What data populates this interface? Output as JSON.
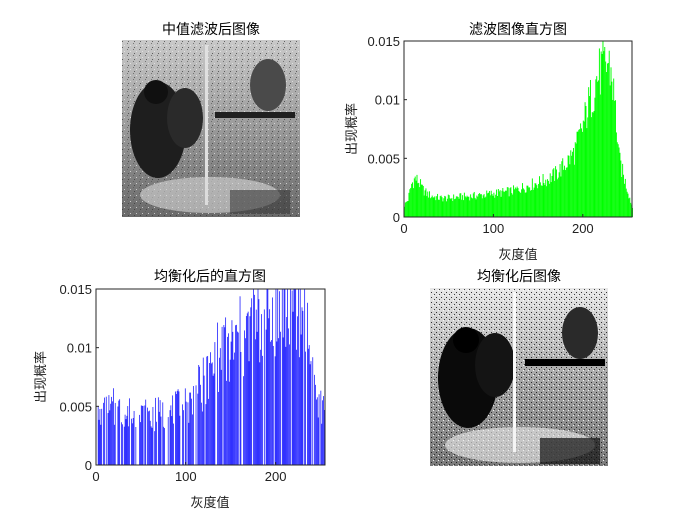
{
  "figure": {
    "top_left": {
      "title": "中值滤波后图像"
    },
    "top_right": {
      "title": "滤波图像直方图"
    },
    "bottom_left": {
      "title": "均衡化后的直方图"
    },
    "bottom_right": {
      "title": "均衡化后图像"
    }
  },
  "chart_data": [
    {
      "type": "bar",
      "title": "滤波图像直方图",
      "xlabel": "灰度值",
      "ylabel": "出现概率",
      "xlim": [
        0,
        255
      ],
      "ylim": [
        0,
        0.015
      ],
      "xticks": [
        "0",
        "100",
        "200"
      ],
      "yticks": [
        "0",
        "0.005",
        "0.01",
        "0.015"
      ],
      "color": "#00ff00",
      "grid": false,
      "profile_x": [
        0,
        4,
        8,
        12,
        16,
        20,
        25,
        30,
        40,
        50,
        60,
        80,
        100,
        120,
        140,
        160,
        170,
        180,
        190,
        200,
        205,
        210,
        215,
        220,
        225,
        228,
        232,
        236,
        240,
        245,
        250,
        255
      ],
      "profile_y": [
        0.001,
        0.0015,
        0.0028,
        0.0033,
        0.003,
        0.0024,
        0.002,
        0.0018,
        0.0016,
        0.0016,
        0.0017,
        0.0018,
        0.002,
        0.0022,
        0.0027,
        0.0032,
        0.0037,
        0.0045,
        0.0055,
        0.0078,
        0.0093,
        0.0105,
        0.0118,
        0.0125,
        0.0128,
        0.0132,
        0.012,
        0.009,
        0.005,
        0.0035,
        0.0022,
        0.0008
      ]
    },
    {
      "type": "bar",
      "title": "均衡化后的直方图",
      "xlabel": "灰度值",
      "ylabel": "出现概率",
      "xlim": [
        0,
        255
      ],
      "ylim": [
        0,
        0.015
      ],
      "xticks": [
        "0",
        "100",
        "200"
      ],
      "yticks": [
        "0",
        "0.005",
        "0.01",
        "0.015"
      ],
      "color": "#0000ff",
      "grid": false,
      "profile_x": [
        0,
        10,
        20,
        40,
        60,
        80,
        100,
        110,
        120,
        130,
        140,
        150,
        160,
        170,
        180,
        190,
        200,
        210,
        220,
        230,
        235,
        240,
        245,
        250,
        255
      ],
      "profile_y": [
        0.0035,
        0.0042,
        0.0046,
        0.004,
        0.004,
        0.0041,
        0.0048,
        0.0055,
        0.0065,
        0.008,
        0.009,
        0.0095,
        0.01,
        0.0108,
        0.0115,
        0.0122,
        0.0125,
        0.0128,
        0.013,
        0.0128,
        0.011,
        0.008,
        0.0055,
        0.0045,
        0.004
      ]
    }
  ],
  "images": {
    "filtered": {
      "name": "median-filtered-image"
    },
    "equalized": {
      "name": "equalized-image"
    }
  }
}
